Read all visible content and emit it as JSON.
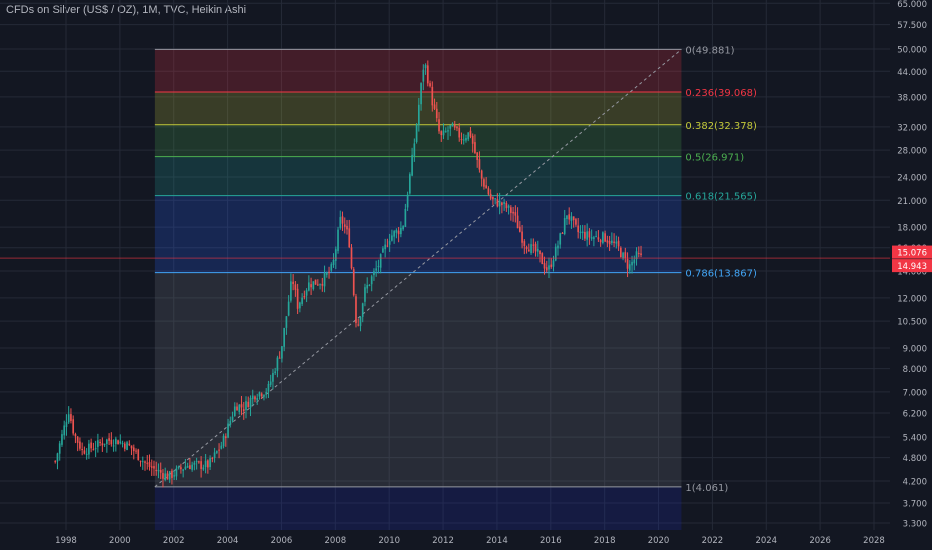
{
  "header": {
    "title": "CFDs on Silver (US$ / OZ), 1M, TVC, Heikin Ashi"
  },
  "colors": {
    "background": "#131722",
    "up": "#26a69a",
    "down": "#ef5350",
    "grid": "#252a37",
    "axis_text": "#b2b5be",
    "price_line": "#f23645"
  },
  "chart_data": {
    "type": "candlestick",
    "style": "Heikin Ashi",
    "scale": "log",
    "x_axis": {
      "tick_labels": [
        "1998",
        "2000",
        "2002",
        "2004",
        "2006",
        "2008",
        "2010",
        "2012",
        "2014",
        "2016",
        "2018",
        "2020",
        "2022",
        "2024",
        "2026",
        "2028"
      ]
    },
    "y_axis": {
      "tick_labels": [
        "3.300",
        "3.700",
        "4.200",
        "4.800",
        "5.400",
        "6.200",
        "7.000",
        "8.000",
        "9.000",
        "10.500",
        "12.000",
        "14.000",
        "16.000",
        "18.000",
        "21.000",
        "24.000",
        "28.000",
        "32.000",
        "38.000",
        "44.000",
        "50.000",
        "57.500",
        "65.000"
      ],
      "range": [
        3.1,
        66
      ]
    },
    "grid": true,
    "price_labels": [
      {
        "value": 15.076,
        "text": "15.076"
      },
      {
        "value": 14.943,
        "text": "14.943"
      }
    ],
    "fibonacci": {
      "start": {
        "date": 2001.3,
        "price": 4.061
      },
      "end": {
        "date": 2020.85,
        "price": 49.881
      },
      "levels": [
        {
          "ratio": 0,
          "price": 49.881,
          "label": "0(49.881)",
          "color": "#9598a1"
        },
        {
          "ratio": 0.236,
          "price": 39.068,
          "label": "0.236(39.068)",
          "color": "#f23645"
        },
        {
          "ratio": 0.382,
          "price": 32.378,
          "label": "0.382(32.378)",
          "color": "#c3c93a"
        },
        {
          "ratio": 0.5,
          "price": 26.971,
          "label": "0.5(26.971)",
          "color": "#4caf50"
        },
        {
          "ratio": 0.618,
          "price": 21.565,
          "label": "0.618(21.565)",
          "color": "#26a69a"
        },
        {
          "ratio": 0.786,
          "price": 13.867,
          "label": "0.786(13.867)",
          "color": "#42a5f5"
        },
        {
          "ratio": 1,
          "price": 4.061,
          "label": "1(4.061)",
          "color": "#9598a1"
        }
      ],
      "zones": [
        {
          "from": 49.881,
          "to": 39.068,
          "color": "#f23645"
        },
        {
          "from": 39.068,
          "to": 32.378,
          "color": "#c3c93a"
        },
        {
          "from": 32.378,
          "to": 26.971,
          "color": "#4caf50"
        },
        {
          "from": 26.971,
          "to": 21.565,
          "color": "#26a69a"
        },
        {
          "from": 21.565,
          "to": 13.867,
          "color": "#2962ff"
        },
        {
          "from": 13.867,
          "to": 4.061,
          "color": "#787b86"
        },
        {
          "from": 4.061,
          "to": 3.1,
          "color": "#1f2fb8"
        }
      ]
    },
    "series_keypoints": [
      [
        1997.6,
        4.7
      ],
      [
        1998.1,
        6.3
      ],
      [
        1998.3,
        5.5
      ],
      [
        1998.6,
        5.0
      ],
      [
        1999.0,
        5.1
      ],
      [
        1999.5,
        5.3
      ],
      [
        1999.9,
        5.3
      ],
      [
        2000.4,
        5.1
      ],
      [
        2001.0,
        4.6
      ],
      [
        2001.8,
        4.3
      ],
      [
        2002.5,
        4.6
      ],
      [
        2003.3,
        4.6
      ],
      [
        2003.8,
        5.2
      ],
      [
        2004.3,
        6.5
      ],
      [
        2004.6,
        6.4
      ],
      [
        2005.0,
        6.9
      ],
      [
        2005.5,
        7.1
      ],
      [
        2006.0,
        9.0
      ],
      [
        2006.4,
        13.5
      ],
      [
        2006.6,
        11.5
      ],
      [
        2007.0,
        13.0
      ],
      [
        2007.5,
        13.2
      ],
      [
        2007.9,
        14.3
      ],
      [
        2008.2,
        19.0
      ],
      [
        2008.5,
        17.0
      ],
      [
        2008.8,
        10.0
      ],
      [
        2009.1,
        12.5
      ],
      [
        2009.6,
        14.5
      ],
      [
        2010.0,
        17.0
      ],
      [
        2010.5,
        18.0
      ],
      [
        2010.9,
        28.0
      ],
      [
        2011.3,
        47.0
      ],
      [
        2011.6,
        37.0
      ],
      [
        2011.9,
        30.0
      ],
      [
        2012.3,
        32.0
      ],
      [
        2012.7,
        30.0
      ],
      [
        2013.0,
        31.0
      ],
      [
        2013.4,
        24.0
      ],
      [
        2013.8,
        21.0
      ],
      [
        2014.2,
        20.5
      ],
      [
        2014.6,
        19.5
      ],
      [
        2015.0,
        16.5
      ],
      [
        2015.5,
        15.5
      ],
      [
        2015.9,
        14.0
      ],
      [
        2016.3,
        16.5
      ],
      [
        2016.6,
        19.5
      ],
      [
        2017.0,
        17.5
      ],
      [
        2017.5,
        17.0
      ],
      [
        2018.0,
        17.0
      ],
      [
        2018.5,
        16.0
      ],
      [
        2018.9,
        14.3
      ],
      [
        2019.2,
        15.3
      ],
      [
        2019.4,
        15.0
      ]
    ]
  }
}
